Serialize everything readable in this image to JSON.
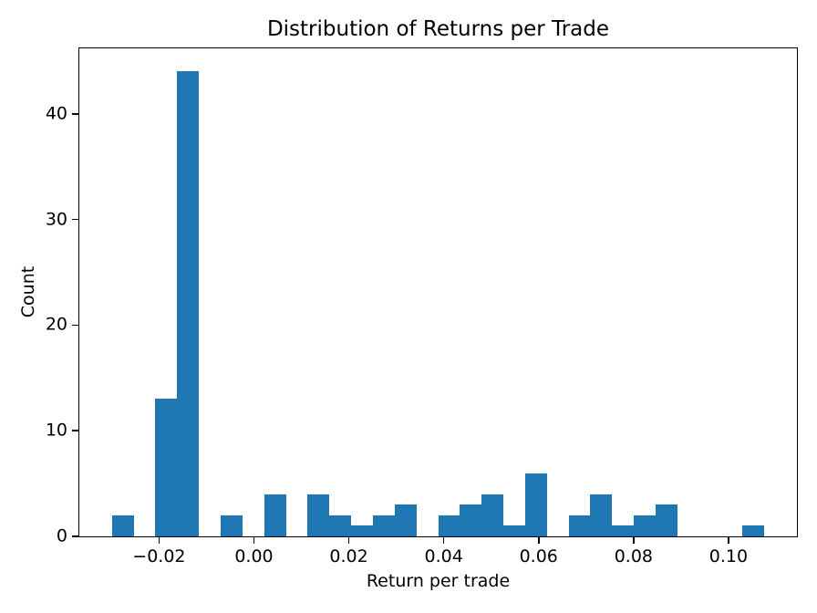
{
  "chart_data": {
    "type": "bar",
    "subtype": "histogram",
    "title": "Distribution of Returns per Trade",
    "xlabel": "Return per trade",
    "ylabel": "Count",
    "bar_color": "#1f77b4",
    "grid": false,
    "legend_position": "none",
    "xlim": [
      -0.036797,
      0.114423
    ],
    "ylim": [
      0,
      46.2
    ],
    "x_ticks": [
      -0.02,
      0.0,
      0.02,
      0.04,
      0.06,
      0.08,
      0.1
    ],
    "x_tick_labels": [
      "−0.02",
      "0.00",
      "0.02",
      "0.04",
      "0.06",
      "0.08",
      "0.10"
    ],
    "y_ticks": [
      0,
      10,
      20,
      30,
      40
    ],
    "y_tick_labels": [
      "0",
      "10",
      "20",
      "30",
      "40"
    ],
    "bin_edges": [
      -0.029923,
      -0.025341,
      -0.020758,
      -0.016176,
      -0.011594,
      -0.007011,
      -0.002429,
      0.002154,
      0.006736,
      0.011318,
      0.015901,
      0.020483,
      0.025066,
      0.029648,
      0.03423,
      0.038813,
      0.043395,
      0.047978,
      0.05256,
      0.057142,
      0.061725,
      0.066307,
      0.07089,
      0.075472,
      0.080054,
      0.084637,
      0.089219,
      0.093802,
      0.098384,
      0.102966,
      0.107549
    ],
    "counts": [
      2,
      0,
      13,
      44,
      0,
      2,
      0,
      4,
      0,
      4,
      2,
      1,
      2,
      3,
      0,
      2,
      3,
      4,
      1,
      6,
      0,
      2,
      4,
      1,
      2,
      3,
      0,
      0,
      0,
      1
    ],
    "total_trades": 106
  }
}
